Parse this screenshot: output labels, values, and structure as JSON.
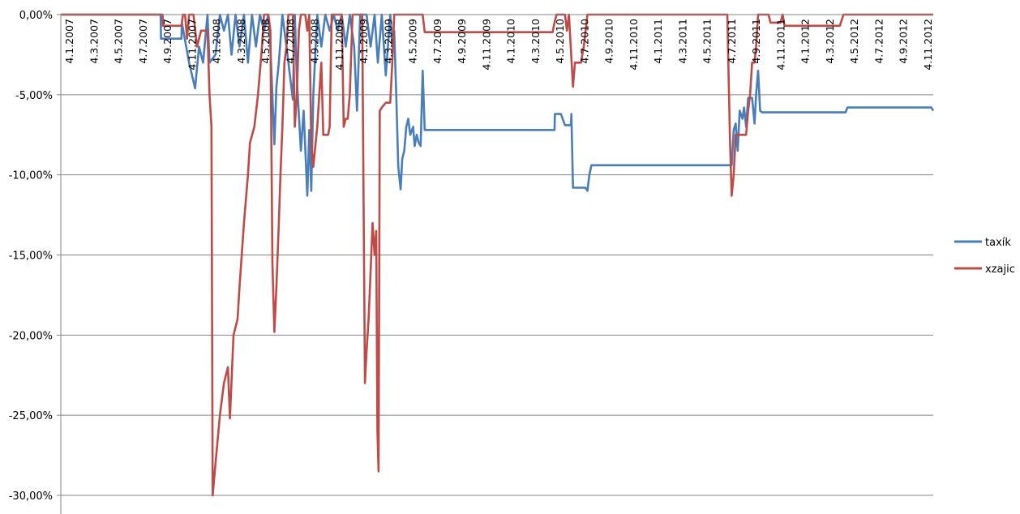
{
  "chart_data": {
    "type": "line",
    "title": "",
    "xlabel": "",
    "ylabel": "",
    "ylim": [
      -0.3,
      0.0
    ],
    "y_ticks": [
      "0,00%",
      "-5,00%",
      "-10,00%",
      "-15,00%",
      "-20,00%",
      "-25,00%",
      "-30,00%"
    ],
    "y_tick_values": [
      0,
      -0.05,
      -0.1,
      -0.15,
      -0.2,
      -0.25,
      -0.3
    ],
    "x_tick_labels": [
      "4.1.2007",
      "4.3.2007",
      "4.5.2007",
      "4.7.2007",
      "4.9.2007",
      "4.11.2007",
      "4.1.2008",
      "4.3.2008",
      "4.5.2008",
      "4.7.2008",
      "4.9.2008",
      "4.11.2008",
      "4.1.2009",
      "4.3.2009",
      "4.5.2009",
      "4.7.2009",
      "4.9.2009",
      "4.11.2009",
      "4.1.2010",
      "4.3.2010",
      "4.5.2010",
      "4.7.2010",
      "4.9.2010",
      "4.11.2010",
      "4.1.2011",
      "4.3.2011",
      "4.5.2011",
      "4.7.2011",
      "4.9.2011",
      "4.11.2011",
      "4.1.2012",
      "4.3.2012",
      "4.5.2012",
      "4.7.2012",
      "4.9.2012",
      "4.11.2012"
    ],
    "x_range": [
      "2007-01-04",
      "2012-12-20"
    ],
    "grid": "horizontal",
    "legend_position": "right",
    "series": [
      {
        "name": "taxík",
        "color": "#4a7ebb",
        "points": [
          [
            "2007-01-04",
            0
          ],
          [
            "2007-09-10",
            0
          ],
          [
            "2007-09-11",
            -0.015
          ],
          [
            "2007-11-01",
            -0.015
          ],
          [
            "2007-11-02",
            -0.005
          ],
          [
            "2007-11-20",
            -0.03
          ],
          [
            "2007-12-05",
            -0.046
          ],
          [
            "2007-12-15",
            -0.02
          ],
          [
            "2007-12-25",
            -0.03
          ],
          [
            "2008-01-05",
            0
          ],
          [
            "2008-01-10",
            -0.03
          ],
          [
            "2008-01-25",
            -0.025
          ],
          [
            "2008-02-05",
            0
          ],
          [
            "2008-02-15",
            -0.01
          ],
          [
            "2008-02-25",
            0
          ],
          [
            "2008-03-05",
            -0.025
          ],
          [
            "2008-03-15",
            0
          ],
          [
            "2008-03-25",
            -0.02
          ],
          [
            "2008-04-05",
            0
          ],
          [
            "2008-04-15",
            -0.03
          ],
          [
            "2008-04-25",
            0
          ],
          [
            "2008-05-05",
            -0.02
          ],
          [
            "2008-05-15",
            0
          ],
          [
            "2008-05-25",
            -0.01
          ],
          [
            "2008-06-05",
            0
          ],
          [
            "2008-06-10",
            -0.02
          ],
          [
            "2008-06-20",
            -0.081
          ],
          [
            "2008-06-25",
            -0.045
          ],
          [
            "2008-07-01",
            -0.03
          ],
          [
            "2008-07-10",
            0
          ],
          [
            "2008-07-20",
            -0.02
          ],
          [
            "2008-07-25",
            -0.03
          ],
          [
            "2008-08-05",
            -0.053
          ],
          [
            "2008-08-10",
            0
          ],
          [
            "2008-08-15",
            -0.04
          ],
          [
            "2008-08-25",
            -0.085
          ],
          [
            "2008-09-01",
            -0.06
          ],
          [
            "2008-09-10",
            -0.113
          ],
          [
            "2008-09-15",
            -0.072
          ],
          [
            "2008-09-20",
            -0.11
          ],
          [
            "2008-09-25",
            -0.05
          ],
          [
            "2008-10-05",
            0
          ],
          [
            "2008-10-15",
            -0.02
          ],
          [
            "2008-10-25",
            0
          ],
          [
            "2008-11-05",
            -0.01
          ],
          [
            "2008-11-15",
            0
          ],
          [
            "2008-11-25",
            -0.01
          ],
          [
            "2008-12-05",
            0
          ],
          [
            "2008-12-15",
            -0.02
          ],
          [
            "2008-12-25",
            0
          ],
          [
            "2009-01-05",
            -0.02
          ],
          [
            "2009-01-12",
            -0.06
          ],
          [
            "2009-01-20",
            0
          ],
          [
            "2009-02-05",
            0
          ],
          [
            "2009-02-15",
            -0.02
          ],
          [
            "2009-02-25",
            0
          ],
          [
            "2009-03-05",
            -0.03
          ],
          [
            "2009-03-15",
            0
          ],
          [
            "2009-03-25",
            -0.038
          ],
          [
            "2009-04-05",
            0
          ],
          [
            "2009-04-10",
            -0.02
          ],
          [
            "2009-04-15",
            -0.01
          ],
          [
            "2009-04-20",
            -0.05
          ],
          [
            "2009-04-25",
            -0.095
          ],
          [
            "2009-05-01",
            -0.109
          ],
          [
            "2009-05-05",
            -0.09
          ],
          [
            "2009-05-10",
            -0.085
          ],
          [
            "2009-05-15",
            -0.07
          ],
          [
            "2009-05-20",
            -0.065
          ],
          [
            "2009-05-25",
            -0.075
          ],
          [
            "2009-06-01",
            -0.07
          ],
          [
            "2009-06-05",
            -0.082
          ],
          [
            "2009-06-10",
            -0.075
          ],
          [
            "2009-06-15",
            -0.08
          ],
          [
            "2009-06-20",
            -0.082
          ],
          [
            "2009-06-25",
            -0.035
          ],
          [
            "2009-06-30",
            -0.072
          ],
          [
            "2010-05-20",
            -0.072
          ],
          [
            "2010-05-21",
            -0.062
          ],
          [
            "2010-06-05",
            -0.062
          ],
          [
            "2010-06-15",
            -0.069
          ],
          [
            "2010-06-30",
            -0.069
          ],
          [
            "2010-07-01",
            -0.062
          ],
          [
            "2010-07-05",
            -0.108
          ],
          [
            "2010-08-05",
            -0.108
          ],
          [
            "2010-08-10",
            -0.11
          ],
          [
            "2010-08-15",
            -0.1
          ],
          [
            "2010-08-20",
            -0.094
          ],
          [
            "2011-08-05",
            -0.094
          ],
          [
            "2011-08-10",
            -0.072
          ],
          [
            "2011-08-15",
            -0.068
          ],
          [
            "2011-08-20",
            -0.085
          ],
          [
            "2011-08-25",
            -0.06
          ],
          [
            "2011-09-01",
            -0.065
          ],
          [
            "2011-09-05",
            -0.058
          ],
          [
            "2011-09-10",
            -0.07
          ],
          [
            "2011-09-15",
            -0.052
          ],
          [
            "2011-09-25",
            -0.052
          ],
          [
            "2011-10-01",
            -0.068
          ],
          [
            "2011-10-05",
            -0.05
          ],
          [
            "2011-10-10",
            -0.035
          ],
          [
            "2011-10-15",
            -0.06
          ],
          [
            "2011-10-20",
            -0.061
          ],
          [
            "2012-05-15",
            -0.061
          ],
          [
            "2012-05-20",
            -0.058
          ],
          [
            "2012-12-15",
            -0.058
          ],
          [
            "2012-12-20",
            -0.06
          ]
        ]
      },
      {
        "name": "xzajic",
        "color": "#be4b48",
        "points": [
          [
            "2007-01-04",
            0
          ],
          [
            "2007-09-15",
            0
          ],
          [
            "2007-09-16",
            -0.007
          ],
          [
            "2007-11-01",
            -0.007
          ],
          [
            "2007-11-05",
            0
          ],
          [
            "2007-11-10",
            0
          ],
          [
            "2007-11-15",
            -0.015
          ],
          [
            "2007-11-20",
            0
          ],
          [
            "2007-12-01",
            0
          ],
          [
            "2007-12-10",
            -0.02
          ],
          [
            "2007-12-20",
            -0.01
          ],
          [
            "2008-01-05",
            -0.01
          ],
          [
            "2008-01-10",
            -0.05
          ],
          [
            "2008-01-15",
            -0.07
          ],
          [
            "2008-01-18",
            -0.3
          ],
          [
            "2008-01-25",
            -0.28
          ],
          [
            "2008-02-05",
            -0.25
          ],
          [
            "2008-02-15",
            -0.23
          ],
          [
            "2008-02-25",
            -0.22
          ],
          [
            "2008-03-01",
            -0.252
          ],
          [
            "2008-03-10",
            -0.2
          ],
          [
            "2008-03-20",
            -0.19
          ],
          [
            "2008-03-25",
            -0.17
          ],
          [
            "2008-04-05",
            -0.13
          ],
          [
            "2008-04-15",
            -0.1
          ],
          [
            "2008-04-20",
            -0.08
          ],
          [
            "2008-05-01",
            -0.07
          ],
          [
            "2008-05-10",
            -0.05
          ],
          [
            "2008-05-20",
            -0.02
          ],
          [
            "2008-05-25",
            0
          ],
          [
            "2008-06-05",
            0
          ],
          [
            "2008-06-10",
            -0.01
          ],
          [
            "2008-06-15",
            -0.155
          ],
          [
            "2008-06-20",
            -0.198
          ],
          [
            "2008-06-25",
            -0.17
          ],
          [
            "2008-07-01",
            -0.13
          ],
          [
            "2008-07-05",
            -0.1
          ],
          [
            "2008-07-10",
            -0.07
          ],
          [
            "2008-07-15",
            -0.03
          ],
          [
            "2008-07-20",
            -0.02
          ],
          [
            "2008-07-25",
            0
          ],
          [
            "2008-08-05",
            0
          ],
          [
            "2008-08-10",
            -0.07
          ],
          [
            "2008-08-15",
            -0.05
          ],
          [
            "2008-08-20",
            -0.01
          ],
          [
            "2008-08-25",
            0
          ],
          [
            "2008-09-05",
            0
          ],
          [
            "2008-09-10",
            -0.01
          ],
          [
            "2008-09-15",
            0
          ],
          [
            "2008-09-20",
            -0.08
          ],
          [
            "2008-09-25",
            -0.095
          ],
          [
            "2008-10-01",
            -0.08
          ],
          [
            "2008-10-05",
            -0.07
          ],
          [
            "2008-10-10",
            -0.05
          ],
          [
            "2008-10-15",
            -0.03
          ],
          [
            "2008-10-20",
            -0.075
          ],
          [
            "2008-11-01",
            -0.075
          ],
          [
            "2008-11-05",
            -0.07
          ],
          [
            "2008-11-10",
            0
          ],
          [
            "2008-12-05",
            0
          ],
          [
            "2008-12-10",
            -0.07
          ],
          [
            "2008-12-15",
            -0.065
          ],
          [
            "2008-12-20",
            -0.065
          ],
          [
            "2008-12-25",
            -0.05
          ],
          [
            "2009-01-01",
            0
          ],
          [
            "2009-01-25",
            0
          ],
          [
            "2009-02-01",
            -0.23
          ],
          [
            "2009-02-05",
            -0.21
          ],
          [
            "2009-02-10",
            -0.19
          ],
          [
            "2009-02-15",
            -0.16
          ],
          [
            "2009-02-20",
            -0.13
          ],
          [
            "2009-02-25",
            -0.15
          ],
          [
            "2009-03-01",
            -0.135
          ],
          [
            "2009-03-04",
            -0.26
          ],
          [
            "2009-03-07",
            -0.285
          ],
          [
            "2009-03-10",
            -0.06
          ],
          [
            "2009-03-15",
            -0.058
          ],
          [
            "2009-03-25",
            -0.055
          ],
          [
            "2009-04-05",
            -0.055
          ],
          [
            "2009-04-10",
            -0.03
          ],
          [
            "2009-04-15",
            0
          ],
          [
            "2009-06-25",
            0
          ],
          [
            "2009-06-30",
            -0.011
          ],
          [
            "2010-05-15",
            -0.011
          ],
          [
            "2010-05-20",
            -0.005
          ],
          [
            "2010-05-25",
            0
          ],
          [
            "2010-06-15",
            0
          ],
          [
            "2010-06-20",
            -0.01
          ],
          [
            "2010-06-25",
            0
          ],
          [
            "2010-07-05",
            -0.045
          ],
          [
            "2010-07-10",
            -0.03
          ],
          [
            "2010-07-25",
            -0.03
          ],
          [
            "2010-08-01",
            -0.02
          ],
          [
            "2010-08-10",
            0
          ],
          [
            "2011-07-25",
            0
          ],
          [
            "2011-08-01",
            -0.08
          ],
          [
            "2011-08-05",
            -0.113
          ],
          [
            "2011-08-10",
            -0.1
          ],
          [
            "2011-08-15",
            -0.075
          ],
          [
            "2011-09-10",
            -0.075
          ],
          [
            "2011-09-15",
            -0.06
          ],
          [
            "2011-09-20",
            -0.05
          ],
          [
            "2011-09-25",
            -0.03
          ],
          [
            "2011-10-01",
            -0.03
          ],
          [
            "2011-10-05",
            -0.02
          ],
          [
            "2011-10-10",
            0
          ],
          [
            "2011-11-05",
            0
          ],
          [
            "2011-11-10",
            -0.005
          ],
          [
            "2011-12-05",
            -0.005
          ],
          [
            "2011-12-10",
            0
          ],
          [
            "2011-12-15",
            -0.007
          ],
          [
            "2012-05-01",
            -0.007
          ],
          [
            "2012-05-10",
            0
          ],
          [
            "2012-12-20",
            0
          ]
        ]
      }
    ]
  }
}
